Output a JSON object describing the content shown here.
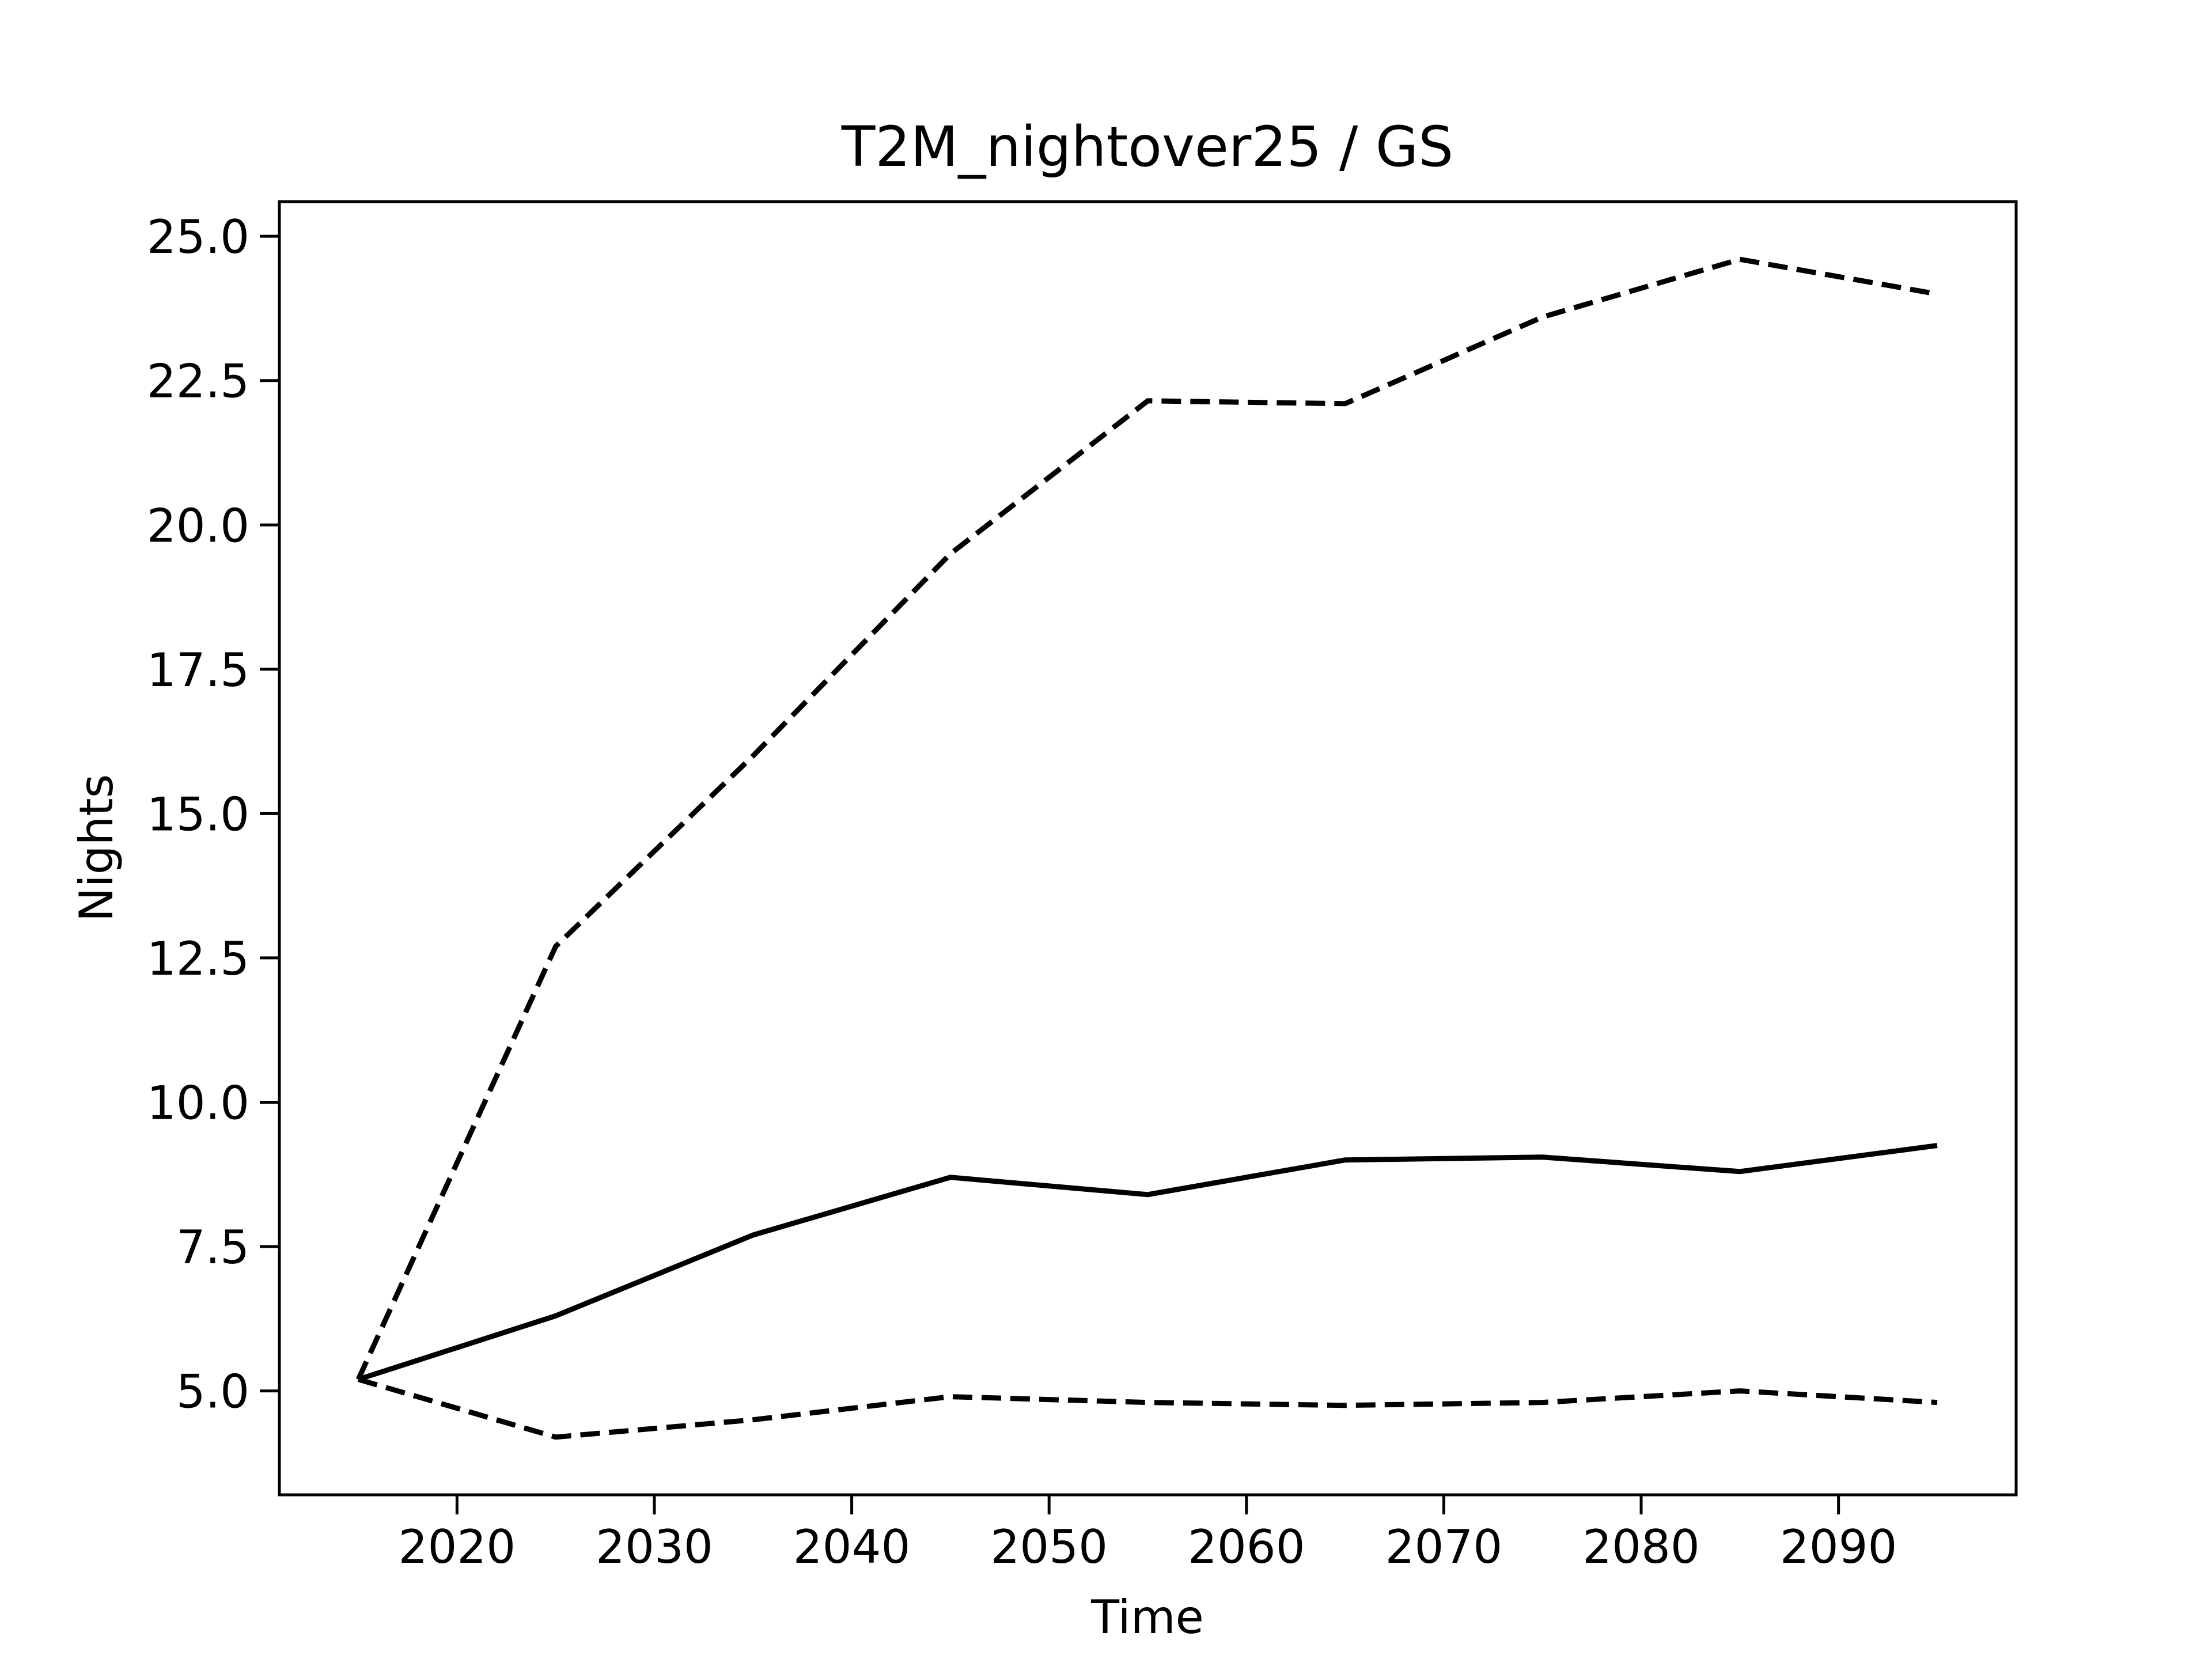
{
  "chart_data": {
    "type": "line",
    "title": "T2M_nightover25 / GS",
    "xlabel": "Time",
    "ylabel": "Nights",
    "x": [
      2015,
      2025,
      2035,
      2045,
      2055,
      2065,
      2075,
      2085,
      2095
    ],
    "xlim": [
      2011,
      2099
    ],
    "ylim": [
      3.2,
      25.6
    ],
    "xticks": [
      2020,
      2030,
      2040,
      2050,
      2060,
      2070,
      2080,
      2090
    ],
    "yticks": [
      5.0,
      7.5,
      10.0,
      12.5,
      15.0,
      17.5,
      20.0,
      22.5,
      25.0
    ],
    "ytick_labels": [
      "5.0",
      "7.5",
      "10.0",
      "12.5",
      "15.0",
      "17.5",
      "20.0",
      "22.5",
      "25.0"
    ],
    "grid": false,
    "legend": "none",
    "line_color": "#000000",
    "series": [
      {
        "style": "solid",
        "values": [
          5.2,
          6.3,
          7.7,
          8.7,
          8.4,
          9.0,
          9.05,
          8.8,
          9.25
        ]
      },
      {
        "style": "dashed",
        "values": [
          5.2,
          12.7,
          16.0,
          19.5,
          22.15,
          22.1,
          23.6,
          24.6,
          24.0
        ]
      },
      {
        "style": "dashed",
        "values": [
          5.2,
          4.2,
          4.5,
          4.9,
          4.8,
          4.75,
          4.8,
          5.0,
          4.8
        ]
      }
    ]
  }
}
